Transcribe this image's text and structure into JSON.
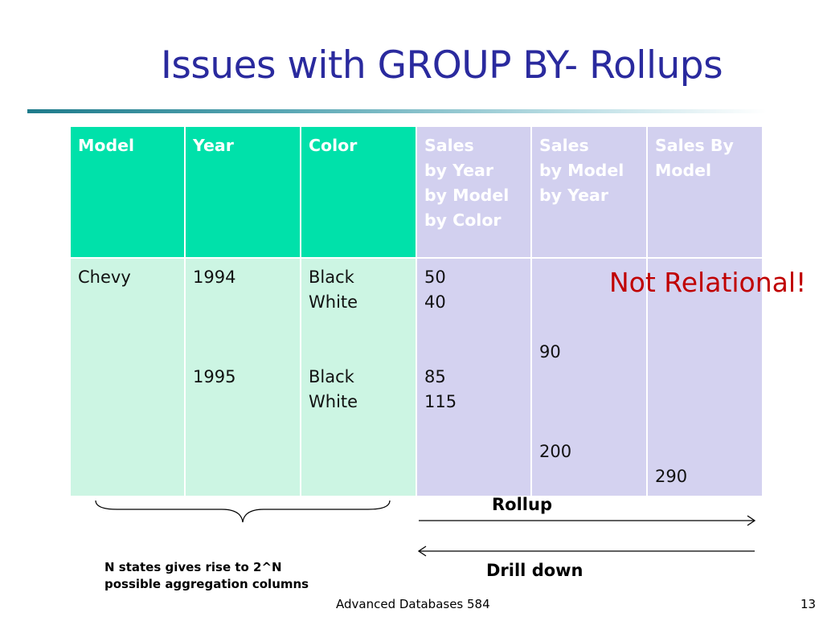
{
  "slide": {
    "title": "Issues with GROUP BY- Rollups",
    "callout": "Not Relational!",
    "note_line1": "N states gives rise to 2^N",
    "note_line2": "possible aggregation columns",
    "rollup_label": "Rollup",
    "drill_label": "Drill down",
    "footer": "Advanced Databases 584",
    "page_number": "13"
  },
  "table": {
    "headers": [
      {
        "lines": [
          "Model"
        ]
      },
      {
        "lines": [
          "Year"
        ]
      },
      {
        "lines": [
          "Color"
        ]
      },
      {
        "lines": [
          "Sales",
          "by Year",
          "by Model",
          "by Color"
        ]
      },
      {
        "lines": [
          "Sales",
          "by Model",
          "by Year"
        ]
      },
      {
        "lines": [
          "Sales By",
          "Model"
        ]
      }
    ],
    "row": {
      "model": "Chevy",
      "year_1994": "1994",
      "year_1995": "1995",
      "color_black_1": "Black",
      "color_white_1": "White",
      "color_black_2": "Black",
      "color_white_2": "White",
      "sales_1": "50",
      "sales_2": "40",
      "sales_3": "85",
      "sales_4": "115",
      "sum_1994": "90",
      "sum_1995": "200",
      "sum_total": "290"
    }
  },
  "colors": {
    "title": "#2a2a9e",
    "header_green": "#00e1aa",
    "header_lavender": "#d2d0ef",
    "cell_green": "#ccf5e3",
    "cell_lavender": "#d4d2f0",
    "callout": "#c00000"
  }
}
